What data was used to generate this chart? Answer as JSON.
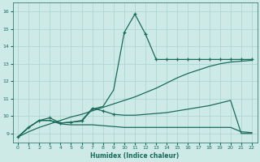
{
  "bg_color": "#ceeae6",
  "grid_color": "#aad4ce",
  "line_color": "#1a6b5a",
  "xlabel": "Humidex (Indice chaleur)",
  "xlim": [
    -0.5,
    22.5
  ],
  "ylim": [
    8.5,
    16.5
  ],
  "yticks": [
    9,
    10,
    11,
    12,
    13,
    14,
    15,
    16
  ],
  "xticks": [
    0,
    1,
    2,
    3,
    4,
    5,
    6,
    7,
    8,
    9,
    10,
    11,
    12,
    13,
    14,
    15,
    16,
    17,
    18,
    19,
    20,
    21,
    22
  ],
  "spike_x": [
    0,
    1,
    2,
    3,
    4,
    5,
    6,
    7,
    8,
    9,
    10,
    11,
    12,
    13,
    14,
    15,
    16,
    17,
    18,
    19,
    20,
    21,
    22
  ],
  "spike_y": [
    8.8,
    9.35,
    9.75,
    9.75,
    9.6,
    9.65,
    9.7,
    10.4,
    10.55,
    11.5,
    14.8,
    15.85,
    14.7,
    13.25,
    13.25,
    13.25,
    13.25,
    13.25,
    13.25,
    13.25,
    13.25,
    13.25,
    13.25
  ],
  "spike_marker_x": [
    10,
    11,
    12,
    13,
    14,
    15,
    16,
    17,
    18,
    19,
    20,
    21,
    22
  ],
  "spike_marker_y": [
    14.8,
    15.85,
    14.7,
    13.25,
    13.25,
    13.25,
    13.25,
    13.25,
    13.25,
    13.25,
    13.25,
    13.25,
    13.25
  ],
  "diag_x": [
    0,
    1,
    2,
    3,
    4,
    5,
    6,
    7,
    8,
    9,
    10,
    11,
    12,
    13,
    14,
    15,
    16,
    17,
    18,
    19,
    20,
    21,
    22
  ],
  "diag_y": [
    8.8,
    9.1,
    9.35,
    9.55,
    9.75,
    9.95,
    10.1,
    10.3,
    10.5,
    10.7,
    10.9,
    11.1,
    11.35,
    11.6,
    11.9,
    12.2,
    12.45,
    12.65,
    12.85,
    13.0,
    13.1,
    13.15,
    13.2
  ],
  "mid_x": [
    0,
    1,
    2,
    3,
    4,
    5,
    6,
    7,
    8,
    9,
    10,
    11,
    12,
    13,
    14,
    15,
    16,
    17,
    18,
    19,
    20,
    21,
    22
  ],
  "mid_y": [
    8.8,
    9.35,
    9.75,
    9.9,
    9.6,
    9.65,
    9.75,
    10.45,
    10.3,
    10.1,
    10.05,
    10.05,
    10.1,
    10.15,
    10.2,
    10.3,
    10.4,
    10.5,
    10.6,
    10.75,
    10.9,
    9.0,
    9.0
  ],
  "mid_marker_x": [
    0,
    1,
    2,
    3,
    4,
    5,
    6,
    7,
    8,
    9
  ],
  "mid_marker_y": [
    8.8,
    9.35,
    9.75,
    9.9,
    9.6,
    9.65,
    9.75,
    10.45,
    10.3,
    10.1
  ],
  "low_x": [
    0,
    1,
    2,
    3,
    4,
    5,
    6,
    7,
    8,
    9,
    10,
    11,
    12,
    13,
    14,
    15,
    16,
    17,
    18,
    19,
    20,
    21,
    22
  ],
  "low_y": [
    8.8,
    9.35,
    9.75,
    9.75,
    9.55,
    9.5,
    9.5,
    9.5,
    9.45,
    9.4,
    9.35,
    9.35,
    9.35,
    9.35,
    9.35,
    9.35,
    9.35,
    9.35,
    9.35,
    9.35,
    9.35,
    9.1,
    9.05
  ],
  "lw": 0.9,
  "ms": 3.5,
  "mew": 0.9
}
